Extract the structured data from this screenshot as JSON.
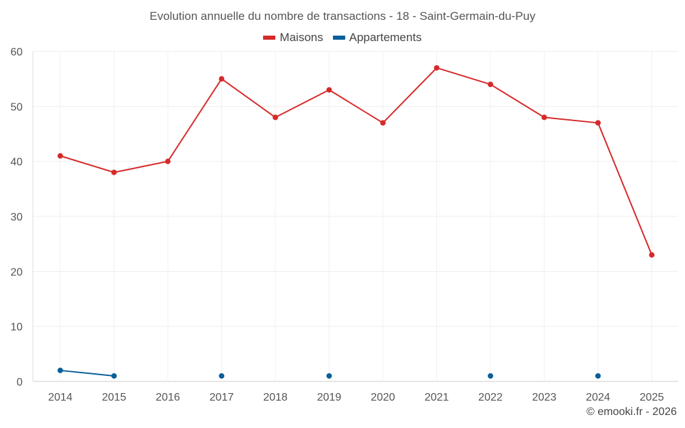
{
  "chart_data": {
    "type": "line",
    "title": "Evolution annuelle du nombre de transactions - 18 - Saint-Germain-du-Puy",
    "categories": [
      "2014",
      "2015",
      "2016",
      "2017",
      "2018",
      "2019",
      "2020",
      "2021",
      "2022",
      "2023",
      "2024",
      "2025"
    ],
    "ylim": [
      0,
      60
    ],
    "yticks": [
      0,
      10,
      20,
      30,
      40,
      50,
      60
    ],
    "xlabel": "",
    "ylabel": "",
    "grid": true,
    "legend_position": "top-center",
    "series": [
      {
        "name": "Maisons",
        "color": "#d62a2a",
        "values": [
          41,
          38,
          40,
          55,
          48,
          53,
          47,
          57,
          54,
          48,
          47,
          23
        ]
      },
      {
        "name": "Appartements",
        "color": "#0b5f9a",
        "values": [
          2,
          1,
          null,
          1,
          null,
          1,
          null,
          null,
          1,
          null,
          1,
          null
        ]
      }
    ]
  },
  "credit": "© emooki.fr - 2026"
}
